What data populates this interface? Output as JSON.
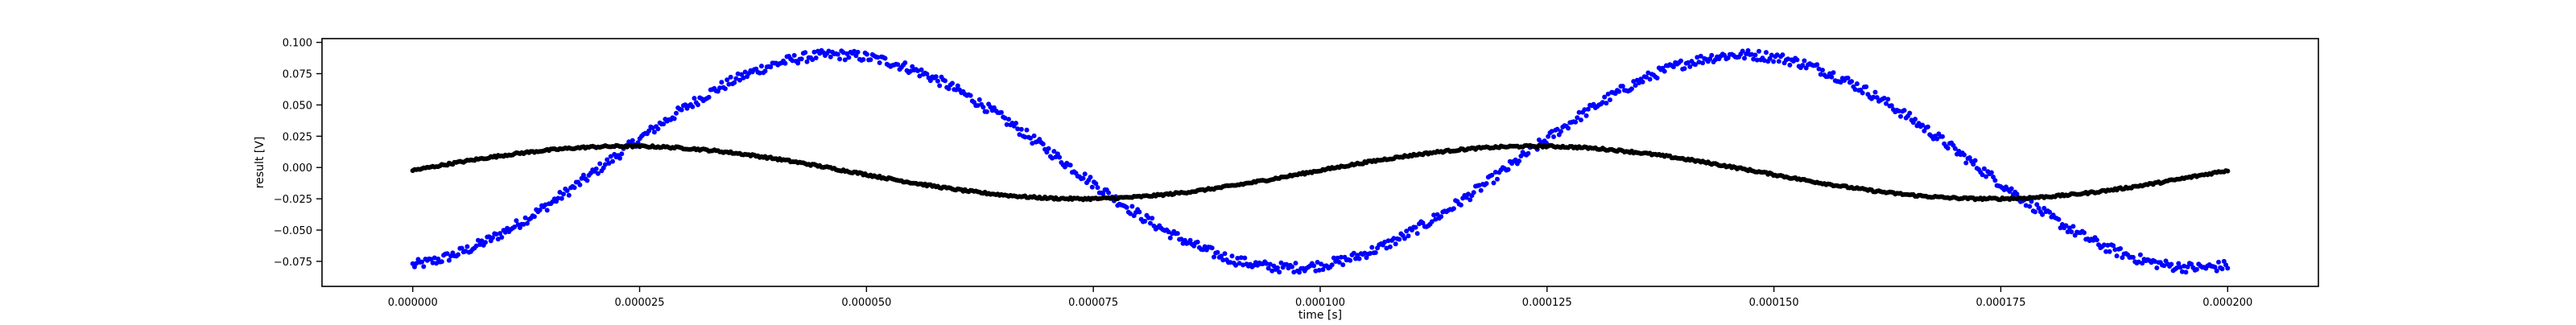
{
  "chart_data": {
    "type": "scatter",
    "title": "",
    "xlabel": "time [s]",
    "ylabel": "result [V]",
    "xlim": [
      -1e-05,
      0.00021
    ],
    "ylim": [
      -0.095,
      0.103
    ],
    "grid": false,
    "x_ticks": [
      0.0,
      2.5e-05,
      5e-05,
      7.5e-05,
      0.0001,
      0.000125,
      0.00015,
      0.000175,
      0.0002
    ],
    "x_tick_labels": [
      "0.000000",
      "0.000025",
      "0.000050",
      "0.000075",
      "0.000100",
      "0.000125",
      "0.000150",
      "0.000175",
      "0.000200"
    ],
    "y_ticks": [
      -0.075,
      -0.05,
      -0.025,
      0.0,
      0.025,
      0.05,
      0.075,
      0.1
    ],
    "y_tick_labels": [
      "−0.075",
      "−0.050",
      "−0.025",
      "0.000",
      "0.025",
      "0.050",
      "0.075",
      "0.100"
    ],
    "series": [
      {
        "color": "#0000ff",
        "marker": "dot",
        "x_range": [
          0.0,
          0.0002
        ],
        "point_count": 1000,
        "model": "sine",
        "amplitude": 0.085,
        "offset": 0.005,
        "period": 0.0001,
        "phase_rad": -1.36,
        "noise": 0.004
      },
      {
        "color": "#000000",
        "marker": "dot",
        "x_range": [
          0.0,
          0.0002
        ],
        "point_count": 1000,
        "model": "sine",
        "amplitude": 0.021,
        "offset": -0.004,
        "period": 0.0001,
        "phase_rad": 0.08,
        "noise": 0.0008
      }
    ]
  }
}
